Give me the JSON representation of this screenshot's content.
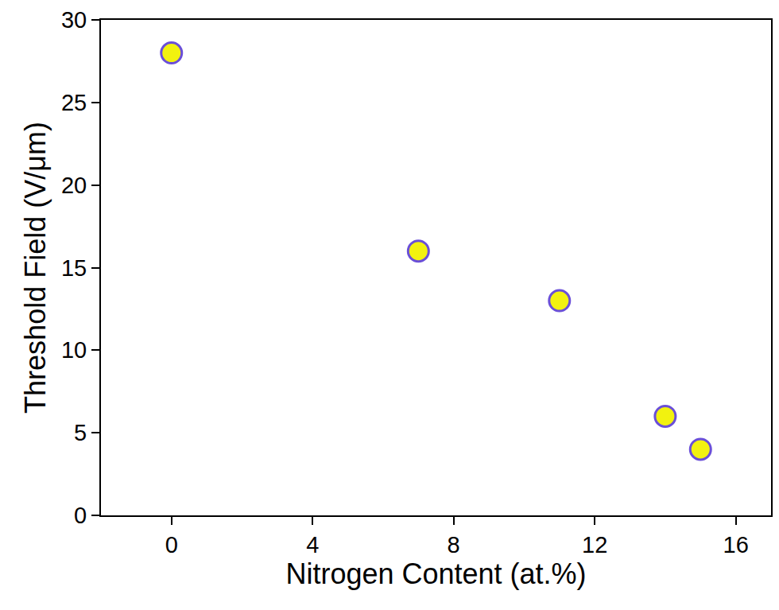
{
  "chart_data": {
    "type": "scatter",
    "x_label": "Nitrogen Content (at.%)",
    "y_label": "Threshold Field (V/μm)",
    "x": [
      0,
      7,
      11,
      14,
      15
    ],
    "values": [
      28,
      16,
      13,
      6,
      4
    ],
    "color": "#f2f20f",
    "marker": "circle",
    "xlim": [
      -2,
      17
    ],
    "xticks": [
      0,
      4,
      8,
      12,
      16
    ],
    "ylim": [
      0,
      30
    ],
    "yticks": [
      0,
      5,
      10,
      15,
      20,
      25,
      30
    ],
    "grid": false
  }
}
